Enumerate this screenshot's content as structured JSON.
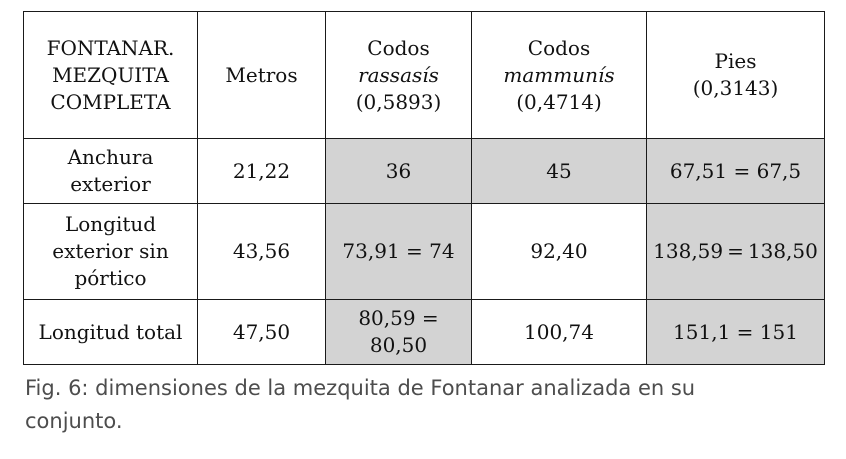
{
  "table": {
    "header": {
      "label": [
        "FONTANAR.",
        "MEZQUITA",
        "COMPLETA"
      ],
      "metros": "Metros",
      "codos_rassasis": {
        "title": "Codos",
        "name": "rassasís",
        "factor": "(0,5893)"
      },
      "codos_mammunis": {
        "title": "Codos",
        "name": "mammunís",
        "factor": "(0,4714)"
      },
      "pies": {
        "title": "Pies",
        "factor": "(0,3143)"
      }
    },
    "rows": [
      {
        "label": [
          "Anchura",
          "exterior"
        ],
        "metros": "21,22",
        "rassasis": "36",
        "mammunis": "45",
        "pies": "67,51 = 67,5"
      },
      {
        "label": [
          "Longitud",
          "exterior sin",
          "pórtico"
        ],
        "metros": "43,56",
        "rassasis": "73,91 = 74",
        "mammunis": "92,40",
        "pies": "138,59 = 138,50"
      },
      {
        "label": [
          "Longitud total"
        ],
        "metros": "47,50",
        "rassasis": [
          "80,59 =",
          "80,50"
        ],
        "mammunis": "100,74",
        "pies": "151,1 = 151"
      }
    ]
  },
  "caption": {
    "lines": [
      "Fig. 6: dimensiones de la mezquita de Fontanar analizada en su",
      "conjunto."
    ]
  },
  "colors": {
    "shaded_cell": "#d3d3d3",
    "border": "#1a1a1a",
    "caption_text": "#4d4d4d"
  }
}
